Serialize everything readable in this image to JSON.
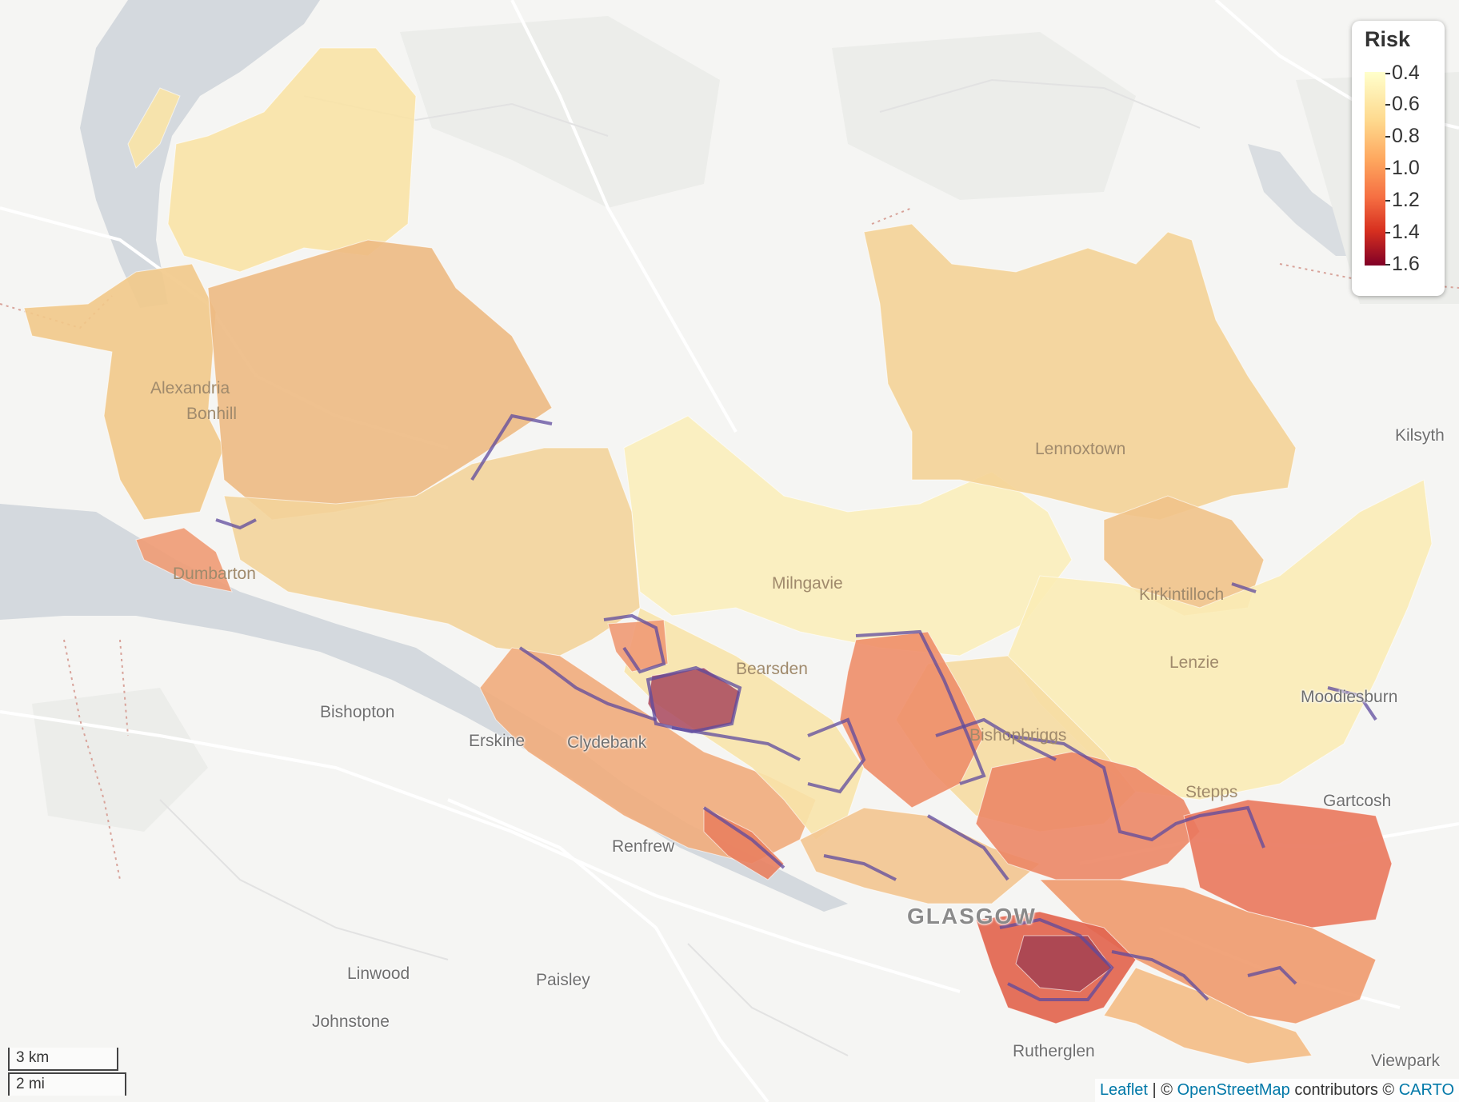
{
  "map": {
    "place_labels": [
      "Alexandria",
      "Bonhill",
      "Dumbarton",
      "Milngavie",
      "Bearsden",
      "Clydebank",
      "Erskine",
      "Bishopton",
      "Renfrew",
      "Linwood",
      "Paisley",
      "Johnstone",
      "GLASGOW",
      "Rutherglen",
      "Lennoxtown",
      "Kirkintilloch",
      "Lenzie",
      "Bishopbriggs",
      "Stepps",
      "Moodiesburn",
      "Gartcosh",
      "Kilsyth",
      "Viewpark"
    ]
  },
  "legend": {
    "title": "Risk",
    "labels": [
      "0.4",
      "0.6",
      "0.8",
      "1.0",
      "1.2",
      "1.4",
      "1.6"
    ],
    "colors": [
      "#ffffcc",
      "#fed98e",
      "#fea85f",
      "#f56e42",
      "#d7301f",
      "#800026"
    ]
  },
  "scale": {
    "km": "3 km",
    "mi": "2 mi"
  },
  "attribution": {
    "leaflet": "Leaflet",
    "sep": " | © ",
    "osm": "OpenStreetMap",
    "contrib": " contributors © ",
    "carto": "CARTO"
  }
}
